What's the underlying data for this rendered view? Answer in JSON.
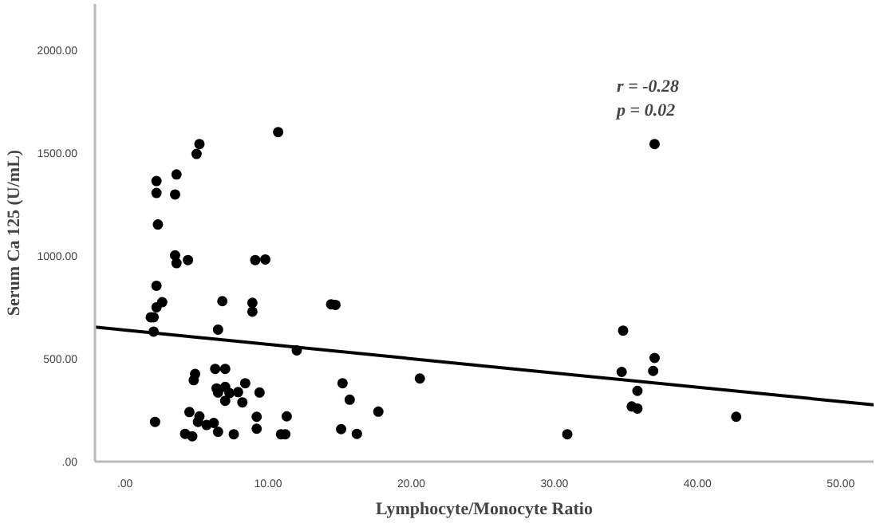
{
  "chart_data": {
    "type": "scatter",
    "xlabel": "Lymphocyte/Monocyte Ratio",
    "ylabel": "Serum Ca 125 (U/mL)",
    "annotations": [
      "r = -0.28",
      "p = 0.02"
    ],
    "xlim": [
      -2.1,
      52.3
    ],
    "ylim": [
      0,
      2225
    ],
    "xticks": [
      {
        "value": 0,
        "label": ".00"
      },
      {
        "value": 10,
        "label": "10.00"
      },
      {
        "value": 20,
        "label": "20.00"
      },
      {
        "value": 30,
        "label": "30.00"
      },
      {
        "value": 40,
        "label": "40.00"
      },
      {
        "value": 50,
        "label": "50.00"
      }
    ],
    "yticks": [
      {
        "value": 0,
        "label": ".00"
      },
      {
        "value": 500,
        "label": "500.00"
      },
      {
        "value": 1000,
        "label": "1000.00"
      },
      {
        "value": 1500,
        "label": "1500.00"
      },
      {
        "value": 2000,
        "label": "2000.00"
      }
    ],
    "grid": false,
    "series": [
      {
        "marker": "circle",
        "color": "#000000",
        "x": [
          2.2,
          2.2,
          2.3,
          3.5,
          3.6,
          5.0,
          5.2,
          10.7,
          3.5,
          3.6,
          4.4,
          9.1,
          9.8,
          37.0,
          2.2,
          2.2,
          2.6,
          1.8,
          2.0,
          2.0,
          6.5,
          6.8,
          8.9,
          8.9,
          14.4,
          14.7,
          12.0,
          6.3,
          7.0,
          4.9,
          4.8,
          6.4,
          6.5,
          7.0,
          7.3,
          7.9,
          8.4,
          9.4,
          7.0,
          8.2,
          15.2,
          15.7,
          17.7,
          20.6,
          2.1,
          4.5,
          5.2,
          5.1,
          5.7,
          6.2,
          6.5,
          4.2,
          4.7,
          7.6,
          9.2,
          9.2,
          11.3,
          10.9,
          11.2,
          15.1,
          16.2,
          34.8,
          37.0,
          34.7,
          36.9,
          35.8,
          35.4,
          35.8,
          30.9,
          42.7
        ],
        "values": [
          1364,
          1306,
          1153,
          1299,
          1396,
          1496,
          1544,
          1602,
          1003,
          965,
          980,
          980,
          983,
          1544,
          855,
          750,
          775,
          702,
          702,
          632,
          642,
          780,
          772,
          729,
          765,
          762,
          541,
          451,
          451,
          426,
          396,
          356,
          336,
          363,
          333,
          338,
          381,
          336,
          296,
          288,
          381,
          301,
          243,
          404,
          193,
          241,
          220,
          193,
          178,
          188,
          145,
          135,
          123,
          133,
          218,
          160,
          220,
          133,
          133,
          158,
          135,
          637,
          504,
          436,
          441,
          344,
          268,
          258,
          133,
          218
        ]
      },
      {
        "type": "line",
        "color": "#000000",
        "x": [
          -2.1,
          52.3
        ],
        "values": [
          654,
          276
        ]
      }
    ]
  }
}
